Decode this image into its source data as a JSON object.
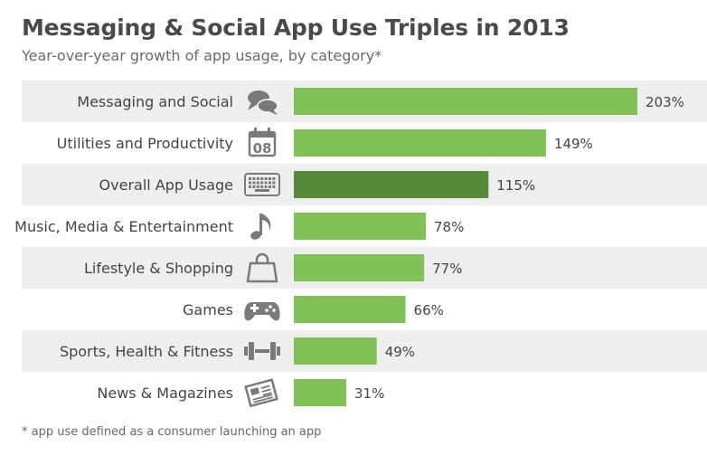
{
  "header": {
    "title": "Messaging & Social App Use Triples in 2013",
    "subtitle": "Year-over-year growth of app usage, by category*"
  },
  "footnote": "* app use defined as a consumer launching an app",
  "colors": {
    "bar": "#7fc157",
    "bar_highlight": "#548a3a",
    "band": "#eeeeee",
    "icon": "#7a7a7a",
    "text": "#444444"
  },
  "chart_data": {
    "type": "bar",
    "orientation": "horizontal",
    "title": "Messaging & Social App Use Triples in 2013",
    "subtitle": "Year-over-year growth of app usage, by category*",
    "categories": [
      "Messaging and Social",
      "Utilities and Productivity",
      "Overall App Usage",
      "Music, Media & Entertainment",
      "Lifestyle & Shopping",
      "Games",
      "Sports, Health & Fitness",
      "News & Magazines"
    ],
    "values": [
      203,
      149,
      115,
      78,
      77,
      66,
      49,
      31
    ],
    "value_labels": [
      "203%",
      "149%",
      "115%",
      "78%",
      "77%",
      "66%",
      "49%",
      "31%"
    ],
    "icons": [
      "speech-bubbles-icon",
      "calendar-icon",
      "keyboard-icon",
      "music-note-icon",
      "shopping-bag-icon",
      "gamepad-icon",
      "dumbbell-icon",
      "newspaper-icon"
    ],
    "calendar_icon_text": "08",
    "highlighted_category": "Overall App Usage",
    "xlim": [
      0,
      203
    ],
    "grid": false,
    "legend": "none"
  }
}
